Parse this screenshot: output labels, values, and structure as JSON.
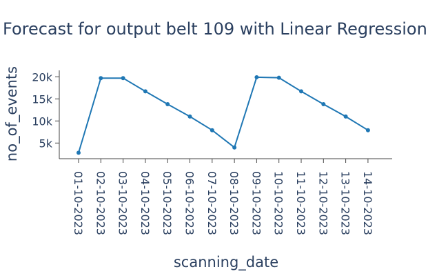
{
  "chart_data": {
    "type": "line",
    "title": "Forecast for output belt 109 with Linear Regression",
    "xlabel": "scanning_date",
    "ylabel": "no_of_events",
    "categories": [
      "01-10-2023",
      "02-10-2023",
      "03-10-2023",
      "04-10-2023",
      "05-10-2023",
      "06-10-2023",
      "07-10-2023",
      "08-10-2023",
      "09-10-2023",
      "10-10-2023",
      "11-10-2023",
      "12-10-2023",
      "13-10-2023",
      "14-10-2023"
    ],
    "values": [
      2800,
      19700,
      19700,
      16700,
      13800,
      11000,
      7900,
      4000,
      19900,
      19800,
      16700,
      13800,
      11000,
      7900
    ],
    "yticks": [
      5000,
      10000,
      15000,
      20000
    ],
    "ytick_labels": [
      "5k",
      "10k",
      "15k",
      "20k"
    ],
    "ylim": [
      1000,
      21500
    ],
    "grid": false,
    "line_color": "#1f77b4"
  }
}
